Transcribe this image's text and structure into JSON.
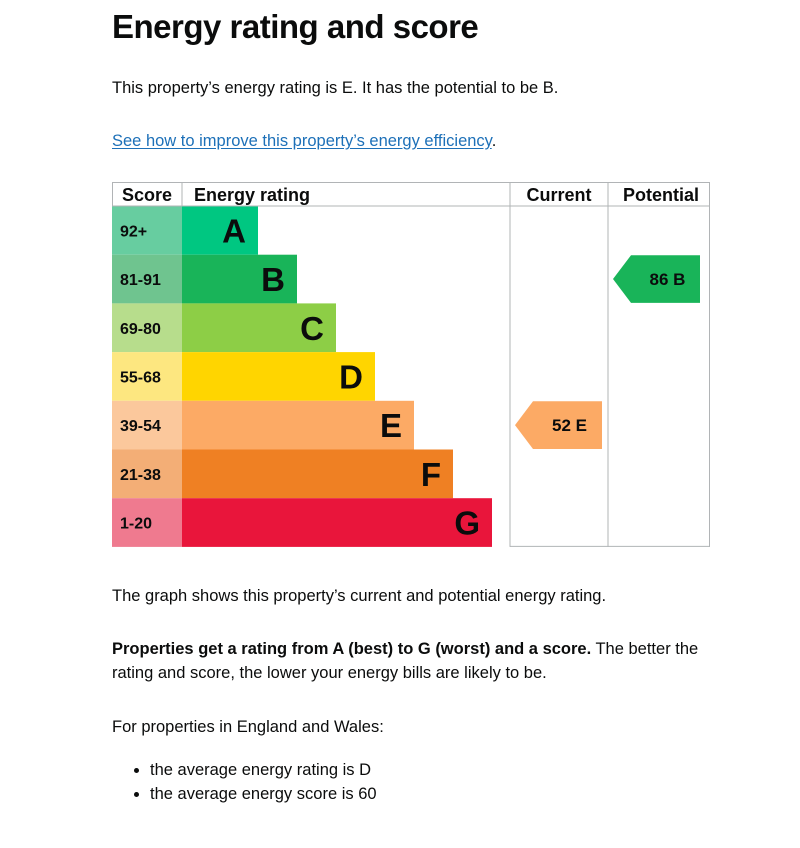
{
  "page": {
    "title": "Energy rating and score",
    "intro": "This property’s energy rating is E. It has the potential to be B.",
    "link_text": "See how to improve this property’s energy efficiency",
    "link_suffix": ".",
    "graph_note": "The graph shows this property’s current and potential energy rating.",
    "ratings_bold": "Properties get a rating from A (best) to G (worst) and a score.",
    "ratings_rest": " The better the rating and score, the lower your energy bills are likely to be.",
    "region_text": "For properties in England and Wales:",
    "averages": [
      "the average energy rating is D",
      "the average energy score is 60"
    ]
  },
  "chart_data": {
    "type": "bar",
    "headers": {
      "score": "Score",
      "energy_rating": "Energy rating",
      "current": "Current",
      "potential": "Potential"
    },
    "bands": [
      {
        "letter": "A",
        "range": "92+",
        "color": "#00c781",
        "score_bg": "#67cda0"
      },
      {
        "letter": "B",
        "range": "81-91",
        "color": "#19b459",
        "score_bg": "#6fc48f"
      },
      {
        "letter": "C",
        "range": "69-80",
        "color": "#8dce46",
        "score_bg": "#b7dd8c"
      },
      {
        "letter": "D",
        "range": "55-68",
        "color": "#ffd500",
        "score_bg": "#fde780"
      },
      {
        "letter": "E",
        "range": "39-54",
        "color": "#fcaa65",
        "score_bg": "#fbc89c"
      },
      {
        "letter": "F",
        "range": "21-38",
        "color": "#ef8023",
        "score_bg": "#f3ae76"
      },
      {
        "letter": "G",
        "range": "1-20",
        "color": "#e9153b",
        "score_bg": "#ef7a8f"
      }
    ],
    "current": {
      "score": 52,
      "rating": "E",
      "label": "52  E"
    },
    "potential": {
      "score": 86,
      "rating": "B",
      "label": "86  B"
    }
  }
}
